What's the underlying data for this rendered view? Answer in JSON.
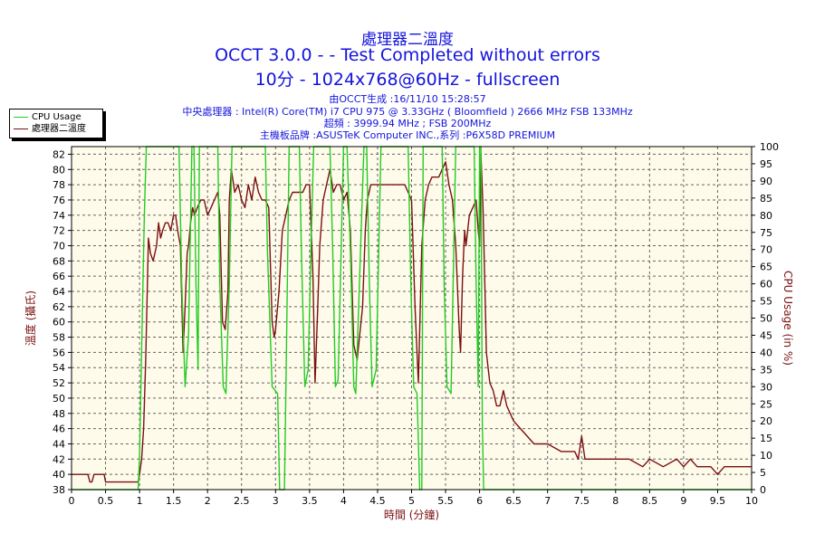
{
  "titles": {
    "line1": "處理器二溫度",
    "line2": "OCCT 3.0.0 -  - Test Completed without errors",
    "line3": "10分 - 1024x768@60Hz - fullscreen"
  },
  "info": {
    "line1": "由OCCT生成 :16/11/10 15:28:57",
    "line2": "中央處理器 : Intel(R) Core(TM) i7 CPU 975 @ 3.33GHz ( Bloomfield ) 2666 MHz FSB 133MHz",
    "line3": "超頻 : 3999.94 MHz ; FSB 200MHz",
    "line4": "主機板品牌 :ASUSTeK Computer INC.,系列 :P6X58D PREMIUM"
  },
  "legend": {
    "cpu_usage": "CPU Usage",
    "temperature": "處理器二溫度"
  },
  "colors": {
    "temperature": "#7a1010",
    "cpu_usage": "#22cc22",
    "plot_background": "#fffbeb",
    "grid": "#666666",
    "title": "#1414dc"
  },
  "chart_data": {
    "type": "line",
    "title": "處理器二溫度",
    "xlabel": "時間 (分鐘)",
    "ylabel": "溫度 (攝氏)",
    "y2label": "CPU Usage (in %)",
    "xlim": [
      0,
      10
    ],
    "ylim": [
      38,
      83
    ],
    "y2lim": [
      0,
      100
    ],
    "x_ticks": [
      "0",
      "0.5",
      "1",
      "1.5",
      "2",
      "2.5",
      "3",
      "3.5",
      "4",
      "4.5",
      "5",
      "5.5",
      "6",
      "6.5",
      "7",
      "7.5",
      "8",
      "8.5",
      "9",
      "9.5",
      "10"
    ],
    "y_ticks": [
      "38",
      "40",
      "42",
      "44",
      "46",
      "48",
      "50",
      "52",
      "54",
      "56",
      "58",
      "60",
      "62",
      "64",
      "66",
      "68",
      "70",
      "72",
      "74",
      "76",
      "78",
      "80",
      "82"
    ],
    "y2_ticks": [
      "0",
      "5",
      "10",
      "15",
      "20",
      "25",
      "30",
      "35",
      "40",
      "45",
      "50",
      "55",
      "60",
      "65",
      "70",
      "75",
      "80",
      "85",
      "90",
      "95",
      "100"
    ],
    "grid": true,
    "legend_position": "top-left",
    "series": [
      {
        "name": "處理器二溫度",
        "axis": "left",
        "x": [
          0,
          0.24,
          0.27,
          0.3,
          0.33,
          0.48,
          0.5,
          0.53,
          0.98,
          1.0,
          1.03,
          1.06,
          1.09,
          1.11,
          1.13,
          1.16,
          1.2,
          1.25,
          1.28,
          1.31,
          1.34,
          1.38,
          1.42,
          1.46,
          1.5,
          1.53,
          1.56,
          1.6,
          1.64,
          1.67,
          1.7,
          1.72,
          1.75,
          1.78,
          1.81,
          1.85,
          1.9,
          1.95,
          2.0,
          2.05,
          2.1,
          2.15,
          2.18,
          2.22,
          2.26,
          2.3,
          2.32,
          2.35,
          2.4,
          2.45,
          2.5,
          2.55,
          2.6,
          2.65,
          2.7,
          2.75,
          2.8,
          2.85,
          2.9,
          2.95,
          2.98,
          3.0,
          3.05,
          3.1,
          3.15,
          3.2,
          3.25,
          3.3,
          3.35,
          3.4,
          3.45,
          3.5,
          3.55,
          3.58,
          3.62,
          3.65,
          3.7,
          3.75,
          3.8,
          3.85,
          3.9,
          3.95,
          4.0,
          4.05,
          4.1,
          4.15,
          4.2,
          4.28,
          4.32,
          4.35,
          4.4,
          4.45,
          4.5,
          4.6,
          4.7,
          4.8,
          4.9,
          5.0,
          5.05,
          5.1,
          5.15,
          5.2,
          5.25,
          5.3,
          5.35,
          5.4,
          5.45,
          5.5,
          5.55,
          5.6,
          5.65,
          5.7,
          5.72,
          5.75,
          5.78,
          5.8,
          5.85,
          5.9,
          5.95,
          5.98,
          6.0,
          6.02,
          6.05,
          6.08,
          6.1,
          6.15,
          6.2,
          6.25,
          6.3,
          6.35,
          6.4,
          6.5,
          6.6,
          6.7,
          6.8,
          7.0,
          7.2,
          7.4,
          7.45,
          7.5,
          7.55,
          7.6,
          7.8,
          8.0,
          8.2,
          8.4,
          8.5,
          8.7,
          8.9,
          9.0,
          9.1,
          9.2,
          9.3,
          9.4,
          9.5,
          9.6,
          9.8,
          10.0
        ],
        "y": [
          40,
          40,
          39,
          39,
          40,
          40,
          39,
          39,
          39,
          40,
          42,
          46,
          55,
          63,
          71,
          69,
          68,
          70,
          73,
          71,
          72,
          73,
          73,
          72,
          74,
          74,
          72,
          70,
          56,
          62,
          69,
          70,
          73,
          75,
          74,
          75,
          76,
          76,
          74,
          75,
          76,
          77,
          74,
          60,
          59,
          64,
          76,
          80,
          77,
          78,
          76,
          75,
          78,
          76,
          79,
          77,
          76,
          76,
          75,
          60,
          58,
          59,
          64,
          72,
          74,
          76,
          77,
          77,
          77,
          77,
          78,
          78,
          66,
          52,
          62,
          70,
          76,
          78,
          80,
          77,
          78,
          78,
          76,
          77,
          72,
          57,
          55,
          62,
          72,
          76,
          78,
          78,
          78,
          78,
          78,
          78,
          78,
          76,
          62,
          52,
          70,
          76,
          78,
          79,
          79,
          79,
          80,
          81,
          78,
          76,
          70,
          59,
          56,
          66,
          72,
          70,
          74,
          75,
          76,
          72,
          70,
          82,
          75,
          64,
          56,
          52,
          51,
          49,
          49,
          51,
          49,
          47,
          46,
          45,
          44,
          44,
          43,
          43,
          42,
          45,
          42,
          42,
          42,
          42,
          42,
          41,
          42,
          41,
          42,
          41,
          42,
          41,
          41,
          41,
          40,
          41,
          41,
          41
        ]
      },
      {
        "name": "CPU Usage",
        "axis": "right",
        "x": [
          0,
          0.98,
          1.0,
          1.04,
          1.07,
          1.1,
          1.12,
          1.15,
          1.2,
          1.58,
          1.62,
          1.67,
          1.72,
          1.77,
          1.8,
          1.83,
          1.86,
          1.88,
          2.15,
          2.18,
          2.23,
          2.27,
          2.32,
          2.36,
          2.4,
          2.85,
          2.88,
          2.95,
          3.03,
          3.06,
          3.1,
          3.13,
          3.16,
          3.2,
          3.35,
          3.38,
          3.43,
          3.48,
          3.52,
          3.56,
          3.6,
          3.8,
          3.84,
          3.88,
          3.92,
          4.0,
          4.05,
          4.1,
          4.15,
          4.18,
          4.3,
          4.34,
          4.38,
          4.42,
          4.48,
          4.55,
          4.6,
          4.95,
          4.99,
          5.03,
          5.08,
          5.12,
          5.15,
          5.17,
          5.2,
          5.45,
          5.48,
          5.52,
          5.58,
          5.62,
          5.65,
          5.68,
          5.92,
          5.95,
          5.98,
          6.0,
          6.02,
          6.04,
          6.06,
          10.0
        ],
        "y": [
          0,
          0,
          10,
          50,
          80,
          100,
          100,
          100,
          100,
          100,
          60,
          30,
          45,
          100,
          100,
          60,
          35,
          100,
          100,
          60,
          30,
          28,
          60,
          100,
          100,
          100,
          70,
          30,
          28,
          0,
          0,
          0,
          40,
          100,
          100,
          70,
          30,
          35,
          70,
          100,
          100,
          100,
          70,
          30,
          32,
          100,
          100,
          70,
          30,
          28,
          100,
          100,
          60,
          30,
          35,
          100,
          100,
          100,
          60,
          30,
          28,
          0,
          0,
          100,
          100,
          100,
          60,
          30,
          28,
          70,
          100,
          100,
          100,
          60,
          30,
          100,
          100,
          20,
          0,
          0
        ]
      }
    ]
  }
}
